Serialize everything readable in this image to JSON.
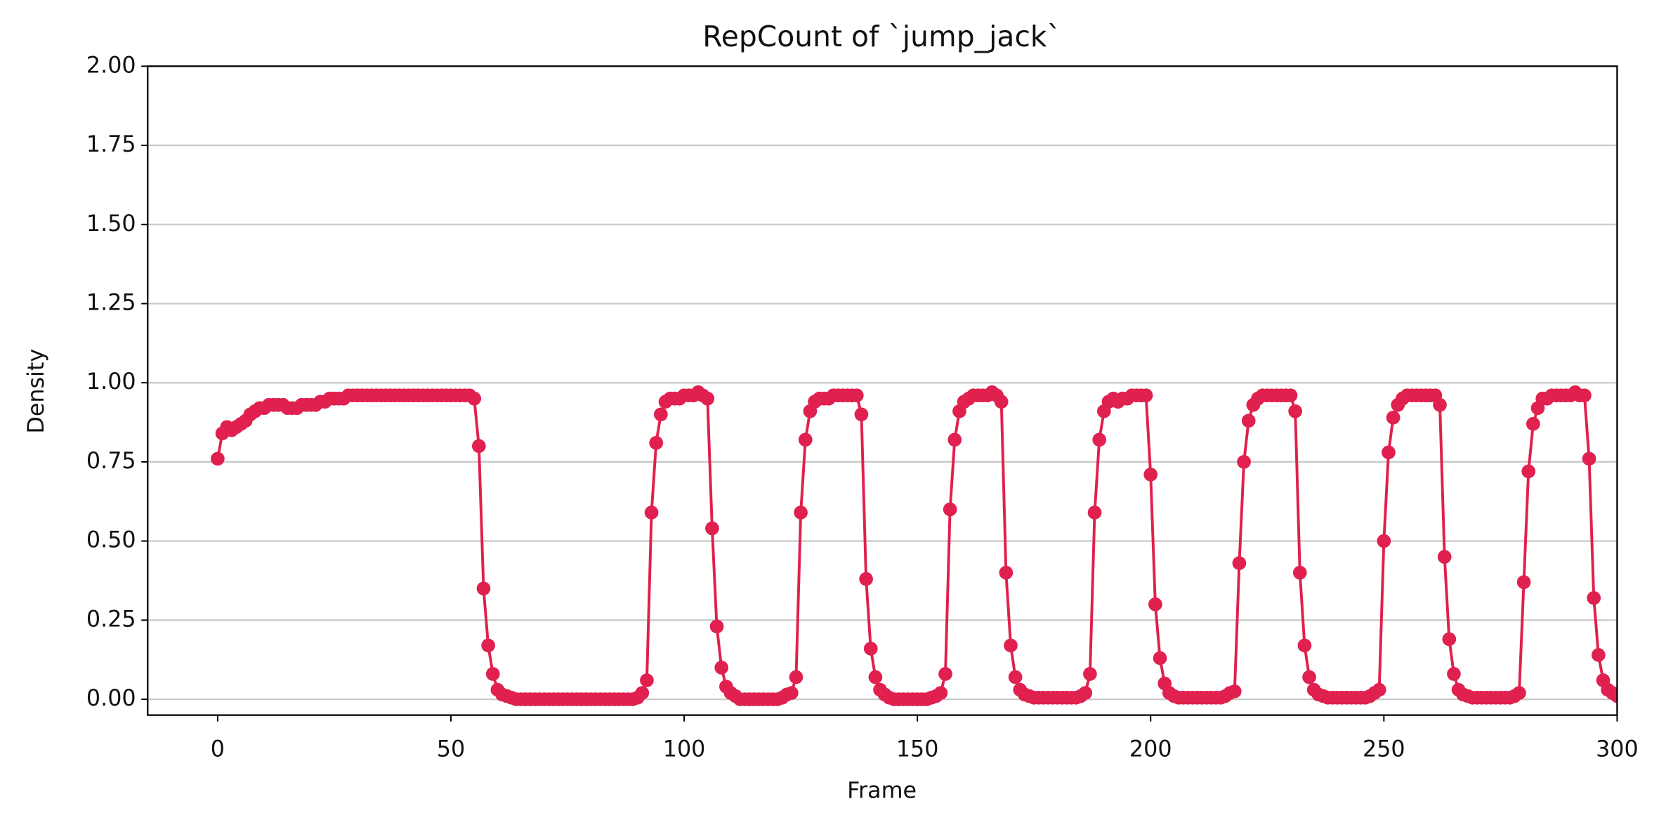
{
  "chart_data": {
    "type": "line",
    "title": "RepCount of `jump_jack`",
    "x_label": "Frame",
    "y_label": "Density",
    "x": [
      0,
      1,
      2,
      3,
      4,
      5,
      6,
      7,
      8,
      9,
      10,
      11,
      12,
      13,
      14,
      15,
      16,
      17,
      18,
      19,
      20,
      21,
      22,
      23,
      24,
      25,
      26,
      27,
      28,
      29,
      30,
      31,
      32,
      33,
      34,
      35,
      36,
      37,
      38,
      39,
      40,
      41,
      42,
      43,
      44,
      45,
      46,
      47,
      48,
      49,
      50,
      51,
      52,
      53,
      54,
      55,
      56,
      57,
      58,
      59,
      60,
      61,
      62,
      63,
      64,
      65,
      66,
      67,
      68,
      69,
      70,
      71,
      72,
      73,
      74,
      75,
      76,
      77,
      78,
      79,
      80,
      81,
      82,
      83,
      84,
      85,
      86,
      87,
      88,
      89,
      90,
      91,
      92,
      93,
      94,
      95,
      96,
      97,
      98,
      99,
      100,
      101,
      102,
      103,
      104,
      105,
      106,
      107,
      108,
      109,
      110,
      111,
      112,
      113,
      114,
      115,
      116,
      117,
      118,
      119,
      120,
      121,
      122,
      123,
      124,
      125,
      126,
      127,
      128,
      129,
      130,
      131,
      132,
      133,
      134,
      135,
      136,
      137,
      138,
      139,
      140,
      141,
      142,
      143,
      144,
      145,
      146,
      147,
      148,
      149,
      150,
      151,
      152,
      153,
      154,
      155,
      156,
      157,
      158,
      159,
      160,
      161,
      162,
      163,
      164,
      165,
      166,
      167,
      168,
      169,
      170,
      171,
      172,
      173,
      174,
      175,
      176,
      177,
      178,
      179,
      180,
      181,
      182,
      183,
      184,
      185,
      186,
      187,
      188,
      189,
      190,
      191,
      192,
      193,
      194,
      195,
      196,
      197,
      198,
      199,
      200,
      201,
      202,
      203,
      204,
      205,
      206,
      207,
      208,
      209,
      210,
      211,
      212,
      213,
      214,
      215,
      216,
      217,
      218,
      219,
      220,
      221,
      222,
      223,
      224,
      225,
      226,
      227,
      228,
      229,
      230,
      231,
      232,
      233,
      234,
      235,
      236,
      237,
      238,
      239,
      240,
      241,
      242,
      243,
      244,
      245,
      246,
      247,
      248,
      249,
      250,
      251,
      252,
      253,
      254,
      255,
      256,
      257,
      258,
      259,
      260,
      261,
      262,
      263,
      264,
      265,
      266,
      267,
      268,
      269,
      270,
      271,
      272,
      273,
      274,
      275,
      276,
      277,
      278,
      279,
      280,
      281,
      282,
      283,
      284,
      285,
      286,
      287,
      288,
      289,
      290,
      291,
      292,
      293,
      294,
      295,
      296,
      297,
      298,
      299,
      300
    ],
    "series": [
      {
        "color": "#e0204e",
        "values": [
          0.76,
          0.84,
          0.86,
          0.85,
          0.86,
          0.87,
          0.88,
          0.9,
          0.91,
          0.92,
          0.92,
          0.93,
          0.93,
          0.93,
          0.93,
          0.92,
          0.92,
          0.92,
          0.93,
          0.93,
          0.93,
          0.93,
          0.94,
          0.94,
          0.95,
          0.95,
          0.95,
          0.95,
          0.96,
          0.96,
          0.96,
          0.96,
          0.96,
          0.96,
          0.96,
          0.96,
          0.96,
          0.96,
          0.96,
          0.96,
          0.96,
          0.96,
          0.96,
          0.96,
          0.96,
          0.96,
          0.96,
          0.96,
          0.96,
          0.96,
          0.96,
          0.96,
          0.96,
          0.96,
          0.96,
          0.95,
          0.8,
          0.35,
          0.17,
          0.08,
          0.03,
          0.015,
          0.01,
          0.005,
          0,
          0,
          0,
          0,
          0,
          0,
          0,
          0,
          0,
          0,
          0,
          0,
          0,
          0,
          0,
          0,
          0,
          0,
          0,
          0,
          0,
          0,
          0,
          0,
          0,
          0,
          0.005,
          0.02,
          0.06,
          0.59,
          0.81,
          0.9,
          0.94,
          0.95,
          0.95,
          0.95,
          0.96,
          0.96,
          0.96,
          0.97,
          0.96,
          0.95,
          0.54,
          0.23,
          0.1,
          0.04,
          0.02,
          0.01,
          0,
          0,
          0,
          0,
          0,
          0,
          0,
          0,
          0,
          0.005,
          0.015,
          0.02,
          0.07,
          0.59,
          0.82,
          0.91,
          0.94,
          0.95,
          0.95,
          0.95,
          0.96,
          0.96,
          0.96,
          0.96,
          0.96,
          0.96,
          0.9,
          0.38,
          0.16,
          0.07,
          0.03,
          0.015,
          0.005,
          0,
          0,
          0,
          0,
          0,
          0,
          0,
          0,
          0.005,
          0.01,
          0.02,
          0.08,
          0.6,
          0.82,
          0.91,
          0.94,
          0.95,
          0.96,
          0.96,
          0.96,
          0.96,
          0.97,
          0.96,
          0.94,
          0.4,
          0.17,
          0.07,
          0.03,
          0.015,
          0.01,
          0.005,
          0.005,
          0.005,
          0.005,
          0.005,
          0.005,
          0.005,
          0.005,
          0.005,
          0.005,
          0.01,
          0.02,
          0.08,
          0.59,
          0.82,
          0.91,
          0.94,
          0.95,
          0.94,
          0.95,
          0.95,
          0.96,
          0.96,
          0.96,
          0.96,
          0.71,
          0.3,
          0.13,
          0.05,
          0.02,
          0.01,
          0.005,
          0.005,
          0.005,
          0.005,
          0.005,
          0.005,
          0.005,
          0.005,
          0.005,
          0.005,
          0.01,
          0.02,
          0.025,
          0.43,
          0.75,
          0.88,
          0.93,
          0.95,
          0.96,
          0.96,
          0.96,
          0.96,
          0.96,
          0.96,
          0.96,
          0.91,
          0.4,
          0.17,
          0.07,
          0.03,
          0.015,
          0.01,
          0.005,
          0.005,
          0.005,
          0.005,
          0.005,
          0.005,
          0.005,
          0.005,
          0.005,
          0.01,
          0.02,
          0.03,
          0.5,
          0.78,
          0.89,
          0.93,
          0.95,
          0.96,
          0.96,
          0.96,
          0.96,
          0.96,
          0.96,
          0.96,
          0.93,
          0.45,
          0.19,
          0.08,
          0.03,
          0.015,
          0.01,
          0.005,
          0.005,
          0.005,
          0.005,
          0.005,
          0.005,
          0.005,
          0.005,
          0.005,
          0.01,
          0.02,
          0.37,
          0.72,
          0.87,
          0.92,
          0.95,
          0.95,
          0.96,
          0.96,
          0.96,
          0.96,
          0.96,
          0.97,
          0.96,
          0.96,
          0.76,
          0.32,
          0.14,
          0.06,
          0.03,
          0.02,
          0.01
        ]
      }
    ],
    "xlim": [
      -15,
      300
    ],
    "xticks": [
      0,
      50,
      100,
      150,
      200,
      250,
      300
    ],
    "ylim": [
      -0.05,
      2
    ],
    "yticks": [
      {
        "value": 0,
        "label": "0.00"
      },
      {
        "value": 0.25,
        "label": "0.25"
      },
      {
        "value": 0.5,
        "label": "0.50"
      },
      {
        "value": 0.75,
        "label": "0.75"
      },
      {
        "value": 1,
        "label": "1.00"
      },
      {
        "value": 1.25,
        "label": "1.25"
      },
      {
        "value": 1.5,
        "label": "1.50"
      },
      {
        "value": 1.75,
        "label": "1.75"
      },
      {
        "value": 2,
        "label": "2.00"
      }
    ],
    "grid": "y",
    "markers": true
  }
}
